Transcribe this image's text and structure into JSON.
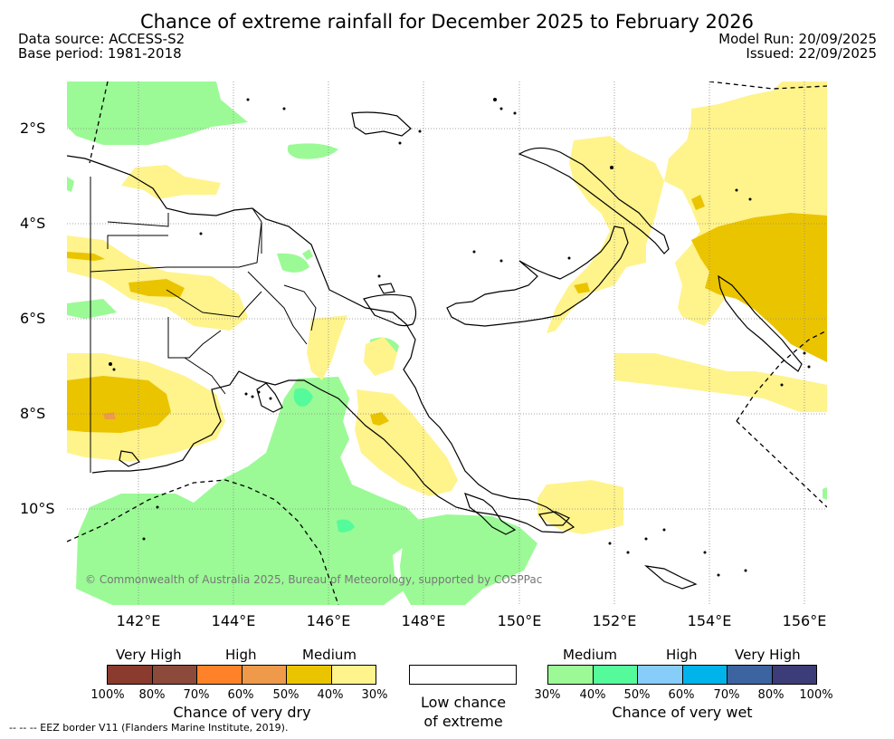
{
  "title": "Chance of extreme rainfall for December 2025 to February 2026",
  "data_source": "Data source: ACCESS-S2",
  "base_period": "Base period: 1981-2018",
  "model_run": "Model Run: 20/09/2025",
  "issued": "Issued: 22/09/2025",
  "lat_labels": [
    "2°S",
    "4°S",
    "6°S",
    "8°S",
    "10°S"
  ],
  "lon_labels": [
    "142°E",
    "144°E",
    "146°E",
    "148°E",
    "150°E",
    "152°E",
    "154°E",
    "156°E"
  ],
  "copyright": "© Commonwealth of Australia 2025, Bureau of Meteorology, supported by COSPPac",
  "legend_dry": {
    "categories": [
      "Very High",
      "High",
      "Medium"
    ],
    "ticks": [
      "100%",
      "80%",
      "70%",
      "60%",
      "50%",
      "40%",
      "30%"
    ],
    "colors": [
      "#8b3a2e",
      "#8b4a3a",
      "#ff8228",
      "#ee9a4a",
      "#ebc400",
      "#fff38c"
    ],
    "label": "Chance of very dry"
  },
  "legend_low": {
    "label_line1": "Low chance",
    "label_line2": "of extreme"
  },
  "legend_wet": {
    "categories": [
      "Medium",
      "High",
      "Very High"
    ],
    "ticks": [
      "30%",
      "40%",
      "50%",
      "60%",
      "70%",
      "80%",
      "100%"
    ],
    "colors": [
      "#9bfa96",
      "#55fa9b",
      "#87cdfa",
      "#00b4eb",
      "#3c64a0",
      "#3c3c78"
    ],
    "label": "Chance of very wet"
  },
  "eez_note": "--  --  -- EEZ border V11 (Flanders Marine Institute, 2019).",
  "colors": {
    "wet_medium": "#9bfa96",
    "wet_medium_high": "#55fa9b",
    "dry_medium_light": "#fff38c",
    "dry_medium": "#ebc400",
    "dry_high": "#ee9a4a"
  }
}
